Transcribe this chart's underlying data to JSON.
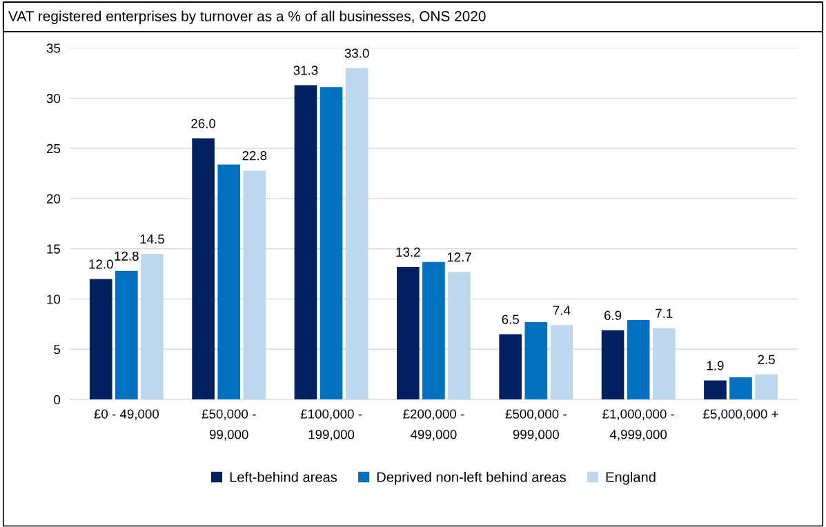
{
  "chart_data": {
    "type": "bar",
    "title": "VAT registered enterprises by turnover as a % of all businesses, ONS 2020",
    "categories": [
      "£0 - 49,000",
      "£50,000 -\n99,000",
      "£100,000 -\n199,000",
      "£200,000 -\n499,000",
      "£500,000 -\n999,000",
      "£1,000,000 -\n4,999,000",
      "£5,000,000 +"
    ],
    "series": [
      {
        "name": "Left-behind areas",
        "color": "#002060",
        "values": [
          12.0,
          26.0,
          31.3,
          13.2,
          6.5,
          6.9,
          1.9
        ],
        "value_labels": [
          "12.0",
          "26.0",
          "31.3",
          "13.2",
          "6.5",
          "6.9",
          "1.9"
        ]
      },
      {
        "name": "Deprived non-left behind areas",
        "color": "#0070c0",
        "values": [
          12.8,
          23.4,
          31.1,
          13.7,
          7.7,
          7.9,
          2.2
        ],
        "value_labels": [
          "12.8",
          null,
          null,
          null,
          null,
          null,
          null
        ]
      },
      {
        "name": "England",
        "color": "#bdd7ee",
        "values": [
          14.5,
          22.8,
          33.0,
          12.7,
          7.4,
          7.1,
          2.5
        ],
        "value_labels": [
          "14.5",
          "22.8",
          "33.0",
          "12.7",
          "7.4",
          "7.1",
          "2.5"
        ]
      }
    ],
    "ylim": [
      0,
      35
    ],
    "yticks": [
      0,
      5,
      10,
      15,
      20,
      25,
      30,
      35
    ],
    "grid": "y",
    "legend": "bottom"
  }
}
